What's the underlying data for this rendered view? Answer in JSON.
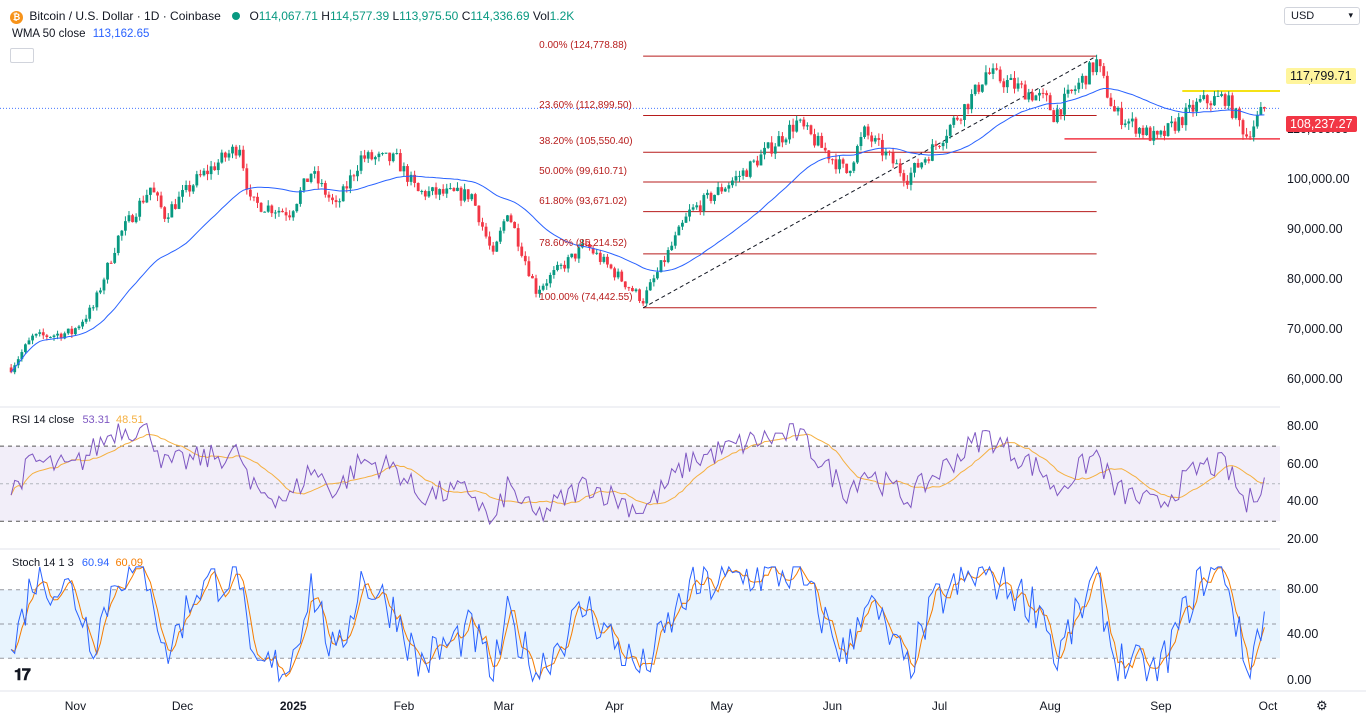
{
  "header": {
    "symbol_title": "Bitcoin / U.S. Dollar · 1D · Coinbase",
    "open_label": "O",
    "open": "114,067.71",
    "high_label": "H",
    "high": "114,577.39",
    "low_label": "L",
    "low": "113,975.50",
    "close_label": "C",
    "close": "114,336.69",
    "vol_label": "Vol",
    "vol": "1.2K",
    "wma_label": "WMA 50 close",
    "wma_value": "113,162.65",
    "currency": "USD"
  },
  "colors": {
    "up": "#089981",
    "down": "#f23645",
    "wma": "#2962ff",
    "fib": "#b71c1c",
    "rsi": "#7e57c2",
    "rsi_ma": "#f5b041",
    "stoch_k": "#2962ff",
    "stoch_d": "#f57c00",
    "resistance": "#f5e216",
    "support": "#f23645"
  },
  "chart_data": [
    {
      "type": "candlestick",
      "title": "Bitcoin / U.S. Dollar · 1D · Coinbase",
      "ylim": [
        57000,
        128000
      ],
      "y_ticks": [
        "120,000.00",
        "110,000.00",
        "100,000.00",
        "90,000.00",
        "80,000.00",
        "70,000.00",
        "60,000.00"
      ],
      "x_ticks": [
        "Nov",
        "Dec",
        "2025",
        "Feb",
        "Mar",
        "Apr",
        "May",
        "Jun",
        "Jul",
        "Aug",
        "Sep",
        "Oct"
      ],
      "x_tick_dates": [
        "2024-11-01",
        "2024-12-01",
        "2025-01-01",
        "2025-02-01",
        "2025-03-01",
        "2025-04-01",
        "2025-05-01",
        "2025-06-01",
        "2025-07-01",
        "2025-08-01",
        "2025-09-01",
        "2025-10-01"
      ],
      "price_path": [
        [
          "2024-10-14",
          62500
        ],
        [
          "2024-10-20",
          68500
        ],
        [
          "2024-10-31",
          69500
        ],
        [
          "2024-11-06",
          74500
        ],
        [
          "2024-11-13",
          88500
        ],
        [
          "2024-11-22",
          98500
        ],
        [
          "2024-11-26",
          93000
        ],
        [
          "2024-12-05",
          100000
        ],
        [
          "2024-12-17",
          107000
        ],
        [
          "2024-12-20",
          95500
        ],
        [
          "2024-12-31",
          93500
        ],
        [
          "2025-01-06",
          101500
        ],
        [
          "2025-01-13",
          94500
        ],
        [
          "2025-01-20",
          104500
        ],
        [
          "2025-01-30",
          104000
        ],
        [
          "2025-02-05",
          97500
        ],
        [
          "2025-02-20",
          97000
        ],
        [
          "2025-02-26",
          84500
        ],
        [
          "2025-03-02",
          94000
        ],
        [
          "2025-03-10",
          78000
        ],
        [
          "2025-03-24",
          87000
        ],
        [
          "2025-04-06",
          78000
        ],
        [
          "2025-04-09",
          76000
        ],
        [
          "2025-04-22",
          93500
        ],
        [
          "2025-05-08",
          102000
        ],
        [
          "2025-05-22",
          111500
        ],
        [
          "2025-06-05",
          101500
        ],
        [
          "2025-06-10",
          109500
        ],
        [
          "2025-06-22",
          100500
        ],
        [
          "2025-06-30",
          107000
        ],
        [
          "2025-07-11",
          117500
        ],
        [
          "2025-07-14",
          121500
        ],
        [
          "2025-07-31",
          115800
        ],
        [
          "2025-08-02",
          113000
        ],
        [
          "2025-08-14",
          123500
        ],
        [
          "2025-08-19",
          113500
        ],
        [
          "2025-08-31",
          108000
        ],
        [
          "2025-09-12",
          115500
        ],
        [
          "2025-09-19",
          116500
        ],
        [
          "2025-09-25",
          109000
        ],
        [
          "2025-09-30",
          114336
        ]
      ],
      "fibonacci": {
        "start_date": "2025-04-09",
        "end_date": "2025-08-14",
        "levels": [
          {
            "label": "0.00% (124,778.88)",
            "price": 124778.88
          },
          {
            "label": "23.60% (112,899.50)",
            "price": 112899.5
          },
          {
            "label": "38.20% (105,550.40)",
            "price": 105550.4
          },
          {
            "label": "50.00% (99,610.71)",
            "price": 99610.71
          },
          {
            "label": "61.80% (93,671.02)",
            "price": 93671.02
          },
          {
            "label": "78.60% (85,214.52)",
            "price": 85214.52
          },
          {
            "label": "100.00% (74,442.55)",
            "price": 74442.55
          }
        ]
      },
      "resistance": {
        "price": 117799.71,
        "label": "117,799.71"
      },
      "support": {
        "price": 108237.27,
        "label": "108,237.27"
      },
      "current_price": 114336.69
    },
    {
      "type": "line",
      "title": "RSI 14 close",
      "series": [
        {
          "name": "RSI",
          "last": "53.31"
        },
        {
          "name": "MA",
          "last": "48.51"
        }
      ],
      "ylim": [
        20,
        85
      ],
      "bands": [
        70,
        50,
        30
      ],
      "y_ticks": [
        "80.00",
        "60.00",
        "40.00",
        "20.00"
      ],
      "rsi_path": [
        [
          "2024-10-14",
          46
        ],
        [
          "2024-10-20",
          62
        ],
        [
          "2024-10-31",
          58
        ],
        [
          "2024-11-06",
          68
        ],
        [
          "2024-11-13",
          80
        ],
        [
          "2024-11-22",
          78
        ],
        [
          "2024-11-26",
          60
        ],
        [
          "2024-12-05",
          63
        ],
        [
          "2024-12-17",
          66
        ],
        [
          "2024-12-20",
          47
        ],
        [
          "2024-12-31",
          42
        ],
        [
          "2025-01-06",
          58
        ],
        [
          "2025-01-13",
          46
        ],
        [
          "2025-01-20",
          62
        ],
        [
          "2025-01-30",
          58
        ],
        [
          "2025-02-05",
          44
        ],
        [
          "2025-02-20",
          46
        ],
        [
          "2025-02-26",
          27
        ],
        [
          "2025-03-02",
          49
        ],
        [
          "2025-03-10",
          32
        ],
        [
          "2025-03-24",
          50
        ],
        [
          "2025-04-06",
          38
        ],
        [
          "2025-04-09",
          36
        ],
        [
          "2025-04-22",
          62
        ],
        [
          "2025-05-08",
          72
        ],
        [
          "2025-05-22",
          77
        ],
        [
          "2025-06-05",
          46
        ],
        [
          "2025-06-10",
          57
        ],
        [
          "2025-06-22",
          42
        ],
        [
          "2025-06-30",
          55
        ],
        [
          "2025-07-11",
          72
        ],
        [
          "2025-07-14",
          76
        ],
        [
          "2025-07-31",
          55
        ],
        [
          "2025-08-02",
          45
        ],
        [
          "2025-08-14",
          66
        ],
        [
          "2025-08-19",
          47
        ],
        [
          "2025-08-31",
          38
        ],
        [
          "2025-09-12",
          59
        ],
        [
          "2025-09-19",
          60
        ],
        [
          "2025-09-25",
          38
        ],
        [
          "2025-09-30",
          53.31
        ]
      ]
    },
    {
      "type": "line",
      "title": "Stoch 14 1 3",
      "series": [
        {
          "name": "%K",
          "last": "60.94"
        },
        {
          "name": "%D",
          "last": "60.09"
        }
      ],
      "ylim": [
        -6,
        106
      ],
      "bands": [
        80,
        50,
        20
      ],
      "y_ticks": [
        "80.00",
        "40.00",
        "0.00"
      ],
      "stoch_path": [
        [
          "2024-10-14",
          20
        ],
        [
          "2024-10-20",
          90
        ],
        [
          "2024-10-31",
          80
        ],
        [
          "2024-11-06",
          35
        ],
        [
          "2024-11-13",
          95
        ],
        [
          "2024-11-22",
          92
        ],
        [
          "2024-11-26",
          20
        ],
        [
          "2024-12-05",
          82
        ],
        [
          "2024-12-17",
          95
        ],
        [
          "2024-12-20",
          10
        ],
        [
          "2024-12-31",
          15
        ],
        [
          "2025-01-06",
          85
        ],
        [
          "2025-01-13",
          15
        ],
        [
          "2025-01-20",
          90
        ],
        [
          "2025-01-30",
          60
        ],
        [
          "2025-02-05",
          15
        ],
        [
          "2025-02-20",
          45
        ],
        [
          "2025-02-26",
          5
        ],
        [
          "2025-03-02",
          55
        ],
        [
          "2025-03-10",
          8
        ],
        [
          "2025-03-24",
          65
        ],
        [
          "2025-04-06",
          15
        ],
        [
          "2025-04-09",
          10
        ],
        [
          "2025-04-22",
          80
        ],
        [
          "2025-05-08",
          92
        ],
        [
          "2025-05-22",
          95
        ],
        [
          "2025-06-05",
          20
        ],
        [
          "2025-06-10",
          75
        ],
        [
          "2025-06-22",
          10
        ],
        [
          "2025-06-30",
          70
        ],
        [
          "2025-07-11",
          92
        ],
        [
          "2025-07-14",
          95
        ],
        [
          "2025-07-31",
          60
        ],
        [
          "2025-08-02",
          15
        ],
        [
          "2025-08-14",
          90
        ],
        [
          "2025-08-19",
          20
        ],
        [
          "2025-08-31",
          5
        ],
        [
          "2025-09-12",
          90
        ],
        [
          "2025-09-19",
          98
        ],
        [
          "2025-09-25",
          8
        ],
        [
          "2025-09-30",
          60.94
        ]
      ]
    }
  ]
}
